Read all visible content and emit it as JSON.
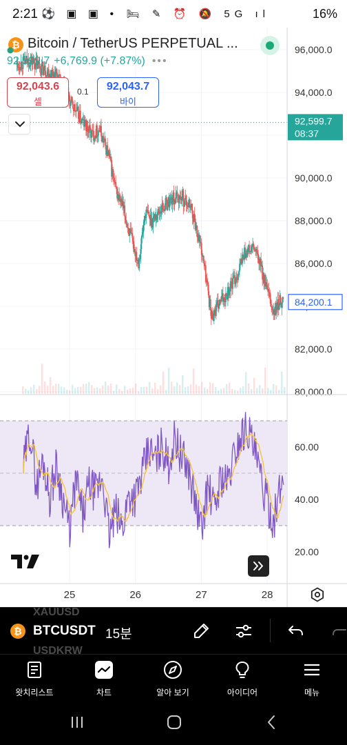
{
  "status_bar": {
    "time": "2:21",
    "left_icons": "⚽ ▣ ▣ •",
    "right_icons": "🛏 ✎ ⏰ 🔕 5G ıl",
    "battery": "16%"
  },
  "symbol": {
    "title": "Bitcoin / TetherUS PERPETUAL ...",
    "last_price": "92,599.7",
    "change": "+6,769.9 (+7.87%)",
    "more": "•••"
  },
  "trade": {
    "sell_price": "92,043.6",
    "sell_label": "셀",
    "spread": "0.1",
    "buy_price": "92,043.7",
    "buy_label": "바이"
  },
  "price_axis": {
    "ticks": [
      "96,000.0",
      "94,000.0",
      "92,000.0",
      "90,000.0",
      "88,000.0",
      "86,000.0",
      "84,000.0",
      "82,000.0",
      "80,000.0"
    ],
    "current_price_label": "92,599.7",
    "countdown_label": "08:37",
    "crosshair_price_label": "84,200.1"
  },
  "rsi_axis": {
    "ticks": [
      "60.00",
      "40.00",
      "20.00"
    ]
  },
  "time_axis": {
    "ticks": [
      "25",
      "26",
      "27",
      "28"
    ]
  },
  "toolbar": {
    "symbol": "BTCUSDT",
    "ghost_above": "XAUUSD",
    "ghost_below": "USDKRW",
    "interval": "15분"
  },
  "nav": {
    "watchlist": "왓치리스트",
    "chart": "차트",
    "explore": "알아 보기",
    "ideas": "아이디어",
    "menu": "메뉴"
  },
  "colors": {
    "up": "#26a69a",
    "down": "#ef5350",
    "rsi_line": "#7e57c2",
    "rsi_ma": "#f5c242",
    "rsi_band": "#ede7f6",
    "accent_green": "#1ba97a"
  },
  "chart_data": {
    "type": "candlestick",
    "interval": "15분",
    "x_ticks": [
      "25",
      "26",
      "27",
      "28"
    ],
    "price_ylim": [
      80000,
      96000
    ],
    "close_path": [
      [
        24.2,
        95300
      ],
      [
        24.4,
        95500
      ],
      [
        24.6,
        95100
      ],
      [
        24.8,
        94800
      ],
      [
        25.0,
        93600
      ],
      [
        25.2,
        92600
      ],
      [
        25.35,
        92000
      ],
      [
        25.45,
        92300
      ],
      [
        25.6,
        91000
      ],
      [
        25.7,
        89400
      ],
      [
        25.8,
        88700
      ],
      [
        25.95,
        87000
      ],
      [
        26.05,
        86100
      ],
      [
        26.15,
        88400
      ],
      [
        26.25,
        88000
      ],
      [
        26.4,
        88600
      ],
      [
        26.55,
        89000
      ],
      [
        26.7,
        89100
      ],
      [
        26.85,
        88600
      ],
      [
        27.0,
        86700
      ],
      [
        27.1,
        84800
      ],
      [
        27.15,
        83500
      ],
      [
        27.25,
        84000
      ],
      [
        27.4,
        84700
      ],
      [
        27.55,
        85500
      ],
      [
        27.65,
        86500
      ],
      [
        27.8,
        86700
      ],
      [
        27.9,
        85900
      ],
      [
        28.0,
        84700
      ],
      [
        28.1,
        83600
      ],
      [
        28.2,
        84300
      ],
      [
        28.25,
        84200
      ]
    ],
    "rsi": {
      "ylim": [
        10,
        75
      ],
      "levels": [
        70,
        30
      ],
      "path": [
        [
          24.3,
          52
        ],
        [
          24.4,
          67
        ],
        [
          24.5,
          45
        ],
        [
          24.6,
          55
        ],
        [
          24.7,
          41
        ],
        [
          24.8,
          53
        ],
        [
          25.0,
          28
        ],
        [
          25.1,
          48
        ],
        [
          25.2,
          33
        ],
        [
          25.3,
          46
        ],
        [
          25.4,
          42
        ],
        [
          25.5,
          49
        ],
        [
          25.6,
          26
        ],
        [
          25.7,
          35
        ],
        [
          25.8,
          29
        ],
        [
          25.9,
          42
        ],
        [
          26.0,
          41
        ],
        [
          26.1,
          49
        ],
        [
          26.2,
          59
        ],
        [
          26.3,
          55
        ],
        [
          26.4,
          61
        ],
        [
          26.5,
          53
        ],
        [
          26.6,
          64
        ],
        [
          26.7,
          56
        ],
        [
          26.8,
          52
        ],
        [
          26.9,
          40
        ],
        [
          27.0,
          28
        ],
        [
          27.1,
          45
        ],
        [
          27.2,
          36
        ],
        [
          27.3,
          49
        ],
        [
          27.4,
          46
        ],
        [
          27.5,
          57
        ],
        [
          27.6,
          64
        ],
        [
          27.7,
          68
        ],
        [
          27.8,
          59
        ],
        [
          27.9,
          48
        ],
        [
          28.0,
          38
        ],
        [
          28.1,
          32
        ],
        [
          28.2,
          44
        ],
        [
          28.25,
          48
        ]
      ]
    }
  }
}
